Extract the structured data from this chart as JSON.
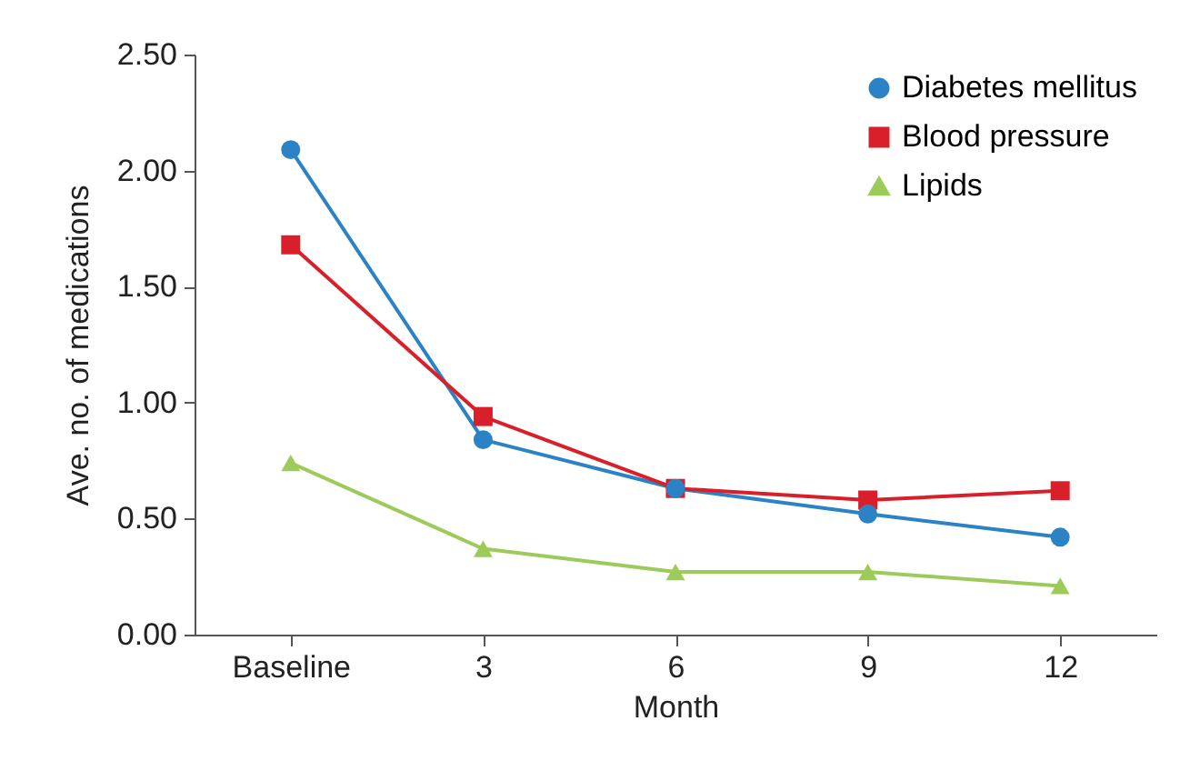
{
  "chart_data": {
    "type": "line",
    "xlabel": "Month",
    "ylabel": "Ave. no. of medications",
    "categories": [
      "Baseline",
      "3",
      "6",
      "9",
      "12"
    ],
    "ylim": [
      0,
      2.5
    ],
    "yticks": [
      {
        "value": 0,
        "label": "0.00"
      },
      {
        "value": 0.5,
        "label": "0.50"
      },
      {
        "value": 1,
        "label": "1.00"
      },
      {
        "value": 1.5,
        "label": "1.50"
      },
      {
        "value": 2,
        "label": "2.00"
      },
      {
        "value": 2.5,
        "label": "2.50"
      }
    ],
    "grid": false,
    "legend": "top right",
    "line_style": "solid",
    "series": [
      {
        "name": "Diabetes mellitus",
        "color": "#2b83c6",
        "marker": "circle",
        "values": [
          2.09,
          0.84,
          0.63,
          0.52,
          0.42
        ]
      },
      {
        "name": "Blood pressure",
        "color": "#d9202a",
        "marker": "square",
        "values": [
          1.68,
          0.94,
          0.63,
          0.58,
          0.62
        ]
      },
      {
        "name": "Lipids",
        "color": "#9dcb5a",
        "marker": "triangle",
        "values": [
          0.74,
          0.37,
          0.27,
          0.27,
          0.21
        ]
      }
    ]
  }
}
